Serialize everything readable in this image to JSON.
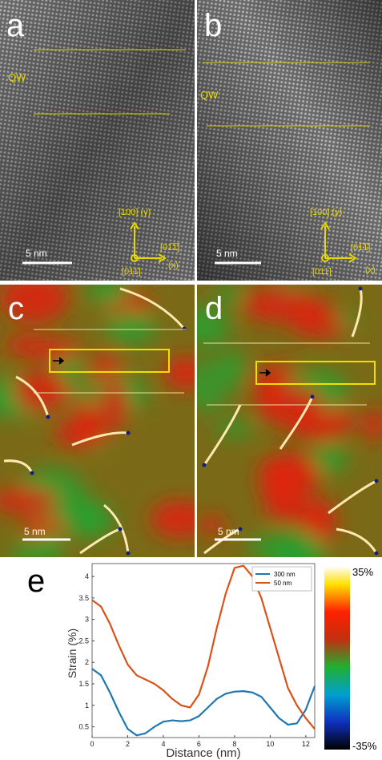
{
  "panels": {
    "a": {
      "label": "a",
      "qw": "QW",
      "y_axis": "[100] (y)",
      "x_axis": "[01̅1̅]",
      "x_dir": "(x)",
      "z_axis": "[011]",
      "scale": "5 nm"
    },
    "b": {
      "label": "b",
      "qw": "QW",
      "y_axis": "[100] (y)",
      "x_axis": "[01̅1̅]",
      "x_dir": "(x)",
      "z_axis": "[011]",
      "scale": "5 nm"
    },
    "c": {
      "label": "c",
      "scale": "5 nm"
    },
    "d": {
      "label": "d",
      "scale": "5 nm"
    },
    "e": {
      "label": "e"
    }
  },
  "colorbar": {
    "max_label": "35%",
    "min_label": "-35%"
  },
  "chart_data": {
    "type": "line",
    "x_label": "Distance (nm)",
    "y_label": "Strain (%)",
    "x": [
      0,
      0.5,
      1,
      1.5,
      2,
      2.5,
      3,
      3.5,
      4,
      4.5,
      5,
      5.5,
      6,
      6.5,
      7,
      7.5,
      8,
      8.5,
      9,
      9.5,
      10,
      10.5,
      11,
      11.5,
      12,
      12.5
    ],
    "series": [
      {
        "name": "300 nm",
        "color": "#1f77b4",
        "values": [
          1.85,
          1.7,
          1.3,
          0.85,
          0.45,
          0.3,
          0.35,
          0.5,
          0.62,
          0.65,
          0.63,
          0.65,
          0.75,
          0.95,
          1.15,
          1.27,
          1.32,
          1.33,
          1.3,
          1.2,
          0.95,
          0.7,
          0.55,
          0.58,
          0.9,
          1.45
        ]
      },
      {
        "name": "50 nm",
        "color": "#d95319",
        "values": [
          3.45,
          3.3,
          2.9,
          2.4,
          1.95,
          1.7,
          1.6,
          1.5,
          1.35,
          1.15,
          1.0,
          0.95,
          1.25,
          1.9,
          2.8,
          3.6,
          4.2,
          4.25,
          4.0,
          3.5,
          2.8,
          2.1,
          1.4,
          1.0,
          0.7,
          0.45
        ]
      }
    ],
    "xlim": [
      0,
      12.5
    ],
    "ylim": [
      0.25,
      4.3
    ],
    "xticks": [
      0,
      2,
      4,
      6,
      8,
      10,
      12
    ],
    "yticks": [
      0.5,
      1,
      1.5,
      2,
      2.5,
      3,
      3.5,
      4
    ],
    "legend": "top-right"
  }
}
